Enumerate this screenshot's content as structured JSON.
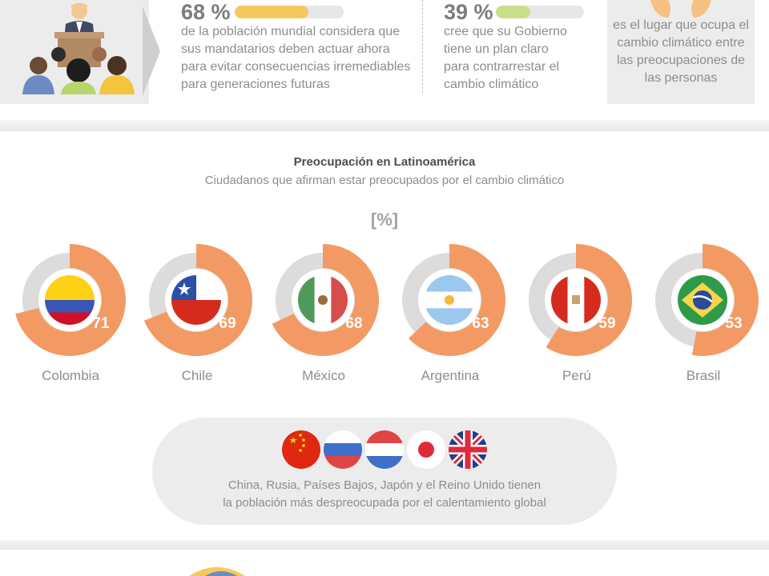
{
  "stats": [
    {
      "value": "68 %",
      "fraction": 0.68,
      "color": "#f6c85f",
      "description": [
        "de la población mundial considera que",
        "sus mandatarios deben actuar ahora",
        "para evitar consecuencias irremediables",
        "para generaciones futuras"
      ]
    },
    {
      "value": "39 %",
      "fraction": 0.39,
      "color": "#c9df8a",
      "description": [
        "cree que su Gobierno",
        "tiene un plan claro",
        "para contrarrestar el",
        "cambio climático"
      ]
    }
  ],
  "ranking_note": [
    "es el lugar que ocupa el",
    "cambio climático entre",
    "las preocupaciones de",
    "las personas"
  ],
  "chart_data": {
    "type": "donut",
    "title": "Preocupación en Latinoamérica",
    "subtitle": "Ciudadanos que afirman estar preocupados por el cambio climático",
    "unit": "[%]",
    "ylim": [
      0,
      100
    ],
    "categories": [
      "Colombia",
      "Chile",
      "México",
      "Argentina",
      "Perú",
      "Brasil"
    ],
    "values": [
      71,
      69,
      68,
      63,
      59,
      53
    ],
    "colors": {
      "value": "#f39a64",
      "remainder": "#dcdcdc"
    }
  },
  "flag_icons": [
    "china-flag-icon",
    "russia-flag-icon",
    "netherlands-flag-icon",
    "japan-flag-icon",
    "uk-flag-icon"
  ],
  "unconcerned_note": [
    "China, Rusia, Países Bajos, Japón y el Reino Unido tienen",
    "la población más despreocupada por el calentamiento global"
  ]
}
